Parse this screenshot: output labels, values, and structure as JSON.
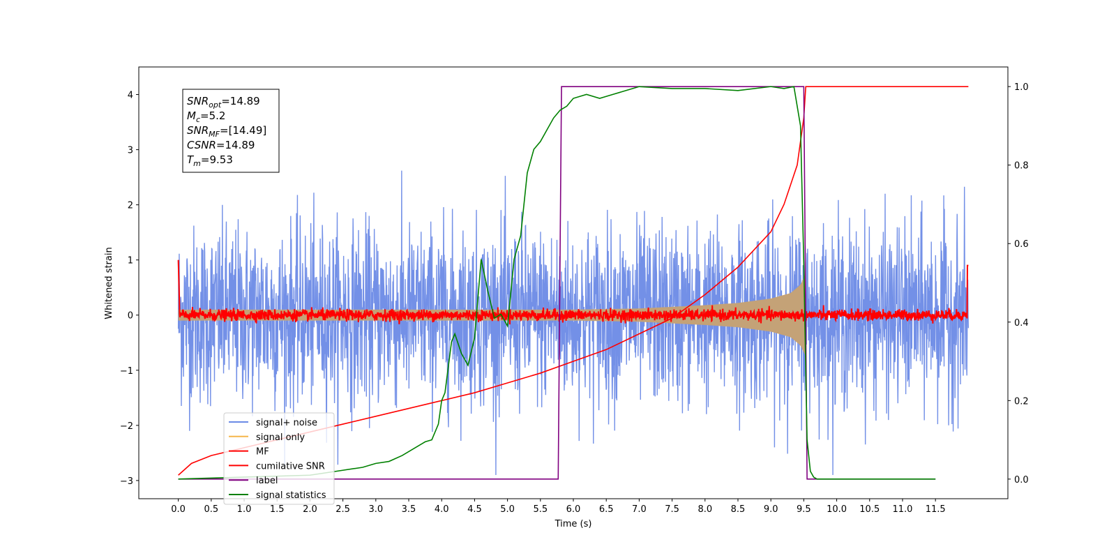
{
  "chart_data": {
    "type": "line",
    "xlabel": "Time (s)",
    "ylabel": "Whitened strain",
    "xlim": [
      -0.6,
      12.6
    ],
    "ylim": [
      -3.33,
      4.5
    ],
    "y2lim": [
      -0.05,
      1.05
    ],
    "x_ticks": [
      "0.0",
      "0.5",
      "1.0",
      "1.5",
      "2.0",
      "2.5",
      "3.0",
      "3.5",
      "4.0",
      "4.5",
      "5.0",
      "5.5",
      "6.0",
      "6.5",
      "7.0",
      "7.5",
      "8.0",
      "8.5",
      "9.0",
      "9.5",
      "10.0",
      "10.5",
      "11.0",
      "11.5"
    ],
    "x_tick_values": [
      0.0,
      0.5,
      1.0,
      1.5,
      2.0,
      2.5,
      3.0,
      3.5,
      4.0,
      4.5,
      5.0,
      5.5,
      6.0,
      6.5,
      7.0,
      7.5,
      8.0,
      8.5,
      9.0,
      9.5,
      10.0,
      10.5,
      11.0,
      11.5
    ],
    "y_ticks": [
      "−3",
      "−2",
      "−1",
      "0",
      "1",
      "2",
      "3",
      "4"
    ],
    "y_tick_values": [
      -3,
      -2,
      -1,
      0,
      1,
      2,
      3,
      4
    ],
    "y2_ticks": [
      "0.0",
      "0.2",
      "0.4",
      "0.6",
      "0.8",
      "1.0"
    ],
    "y2_tick_values": [
      0.0,
      0.2,
      0.4,
      0.6,
      0.8,
      1.0
    ],
    "grid": false,
    "legend_position": "lower-left",
    "annotation_lines": [
      {
        "label_main": "SNR",
        "label_sub": "opt",
        "value": "=14.89"
      },
      {
        "label_main": "M",
        "label_sub": "c",
        "value": "=5.2"
      },
      {
        "label_main": "SNR",
        "label_sub": "MF",
        "value": "=[14.49]"
      },
      {
        "label_main": "CSNR",
        "label_sub": "",
        "value": "=14.89"
      },
      {
        "label_main": "T",
        "label_sub": "m",
        "value": "=9.53"
      }
    ],
    "series": [
      {
        "name": "signal+ noise",
        "color": "#6b8ae6",
        "axis": "left",
        "noise_sigma": 0.8,
        "x_range": [
          0.0,
          12.0
        ]
      },
      {
        "name": "signal only",
        "color": "#f5b64a",
        "axis": "left",
        "envelope_x": [
          0.0,
          2.0,
          4.0,
          5.0,
          6.0,
          7.0,
          8.0,
          8.5,
          9.0,
          9.3,
          9.45,
          9.53
        ],
        "envelope_amp": [
          0.1,
          0.1,
          0.1,
          0.1,
          0.1,
          0.12,
          0.18,
          0.22,
          0.3,
          0.4,
          0.55,
          0.75
        ]
      },
      {
        "name": "MF",
        "color": "#ff0000",
        "axis": "left",
        "noise_sigma": 0.05,
        "x_range": [
          0.0,
          12.0
        ]
      },
      {
        "name": "cumilative SNR",
        "color": "#ff0000",
        "axis": "right",
        "x": [
          0.0,
          0.2,
          0.5,
          1.0,
          1.5,
          2.0,
          2.5,
          3.0,
          3.5,
          4.0,
          4.5,
          5.0,
          5.5,
          6.0,
          6.5,
          7.0,
          7.5,
          8.0,
          8.5,
          9.0,
          9.2,
          9.4,
          9.5,
          9.53,
          10.0,
          11.0,
          12.0
        ],
        "y": [
          0.01,
          0.04,
          0.06,
          0.08,
          0.1,
          0.12,
          0.14,
          0.16,
          0.18,
          0.2,
          0.22,
          0.245,
          0.27,
          0.3,
          0.33,
          0.37,
          0.41,
          0.47,
          0.54,
          0.63,
          0.7,
          0.8,
          0.92,
          1.0,
          1.0,
          1.0,
          1.0
        ]
      },
      {
        "name": "label",
        "color": "#800080",
        "axis": "right",
        "x": [
          0.0,
          5.77,
          5.82,
          9.5,
          9.55,
          11.5
        ],
        "y": [
          0.0,
          0.0,
          1.0,
          1.0,
          0.0,
          0.0
        ]
      },
      {
        "name": "signal statistics",
        "color": "#008000",
        "axis": "right",
        "x": [
          0.0,
          2.0,
          2.4,
          2.8,
          3.0,
          3.2,
          3.4,
          3.6,
          3.75,
          3.85,
          3.95,
          4.0,
          4.05,
          4.15,
          4.2,
          4.3,
          4.4,
          4.5,
          4.6,
          4.7,
          4.8,
          4.9,
          5.0,
          5.1,
          5.2,
          5.3,
          5.4,
          5.5,
          5.6,
          5.7,
          5.8,
          5.9,
          6.0,
          6.2,
          6.4,
          6.6,
          6.8,
          7.0,
          7.5,
          8.0,
          8.5,
          9.0,
          9.2,
          9.35,
          9.45,
          9.5,
          9.55,
          9.6,
          9.65,
          9.7,
          10.0,
          11.0,
          11.5
        ],
        "y": [
          0.0,
          0.01,
          0.02,
          0.03,
          0.04,
          0.045,
          0.06,
          0.08,
          0.095,
          0.1,
          0.14,
          0.2,
          0.22,
          0.35,
          0.37,
          0.32,
          0.29,
          0.36,
          0.56,
          0.48,
          0.41,
          0.42,
          0.39,
          0.56,
          0.62,
          0.78,
          0.84,
          0.86,
          0.89,
          0.92,
          0.94,
          0.95,
          0.97,
          0.98,
          0.97,
          0.98,
          0.99,
          1.0,
          0.995,
          0.995,
          0.99,
          1.0,
          0.995,
          1.0,
          0.9,
          0.55,
          0.1,
          0.02,
          0.005,
          0.0,
          0.0,
          0.0,
          0.0
        ]
      }
    ]
  }
}
